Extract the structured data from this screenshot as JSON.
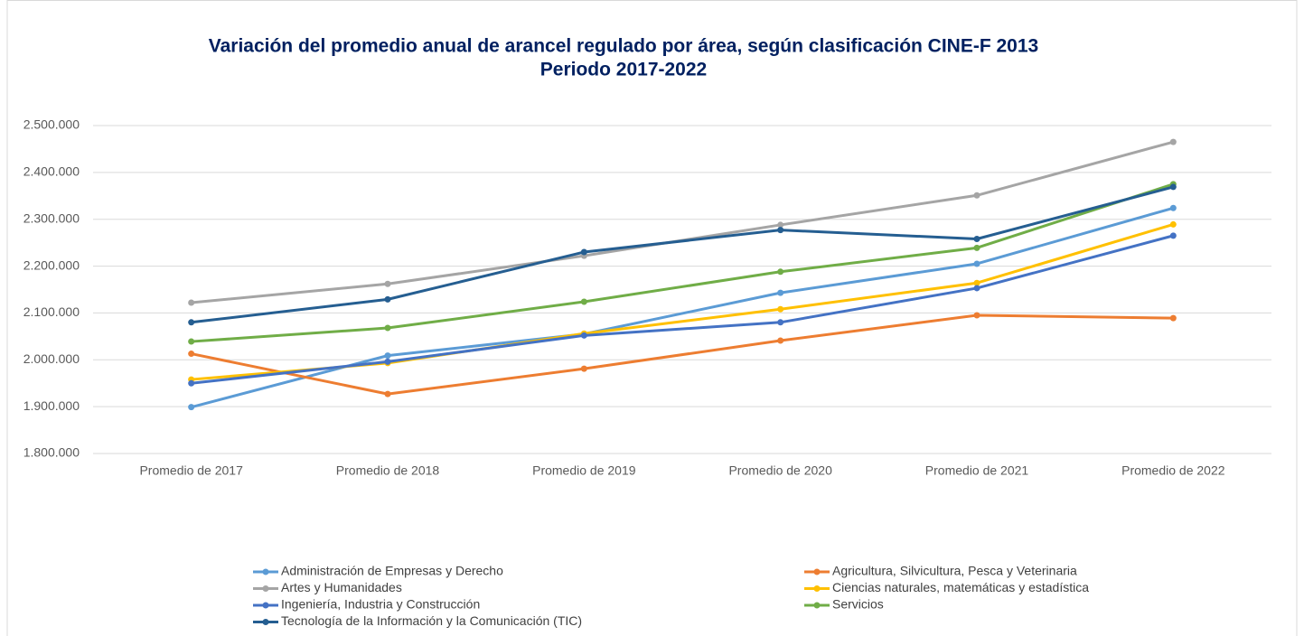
{
  "chart_data": {
    "type": "line",
    "title": "Variación del promedio anual de arancel regulado por área, según clasificación CINE-F 2013",
    "subtitle": "Periodo 2017-2022",
    "categories": [
      "Promedio de 2017",
      "Promedio de 2018",
      "Promedio de 2019",
      "Promedio de 2020",
      "Promedio de 2021",
      "Promedio de 2022"
    ],
    "ylim": [
      1800000,
      2500000
    ],
    "yticks": [
      {
        "value": 1800000,
        "label": "1.800.000"
      },
      {
        "value": 1900000,
        "label": "1.900.000"
      },
      {
        "value": 2000000,
        "label": "2.000.000"
      },
      {
        "value": 2100000,
        "label": "2.100.000"
      },
      {
        "value": 2200000,
        "label": "2.200.000"
      },
      {
        "value": 2300000,
        "label": "2.300.000"
      },
      {
        "value": 2400000,
        "label": "2.400.000"
      },
      {
        "value": 2500000,
        "label": "2.500.000"
      }
    ],
    "grid": true,
    "legend": "bottom",
    "series": [
      {
        "name": "Administración de Empresas y Derecho",
        "color": "#5b9bd5",
        "values": [
          1899000,
          2009000,
          2055000,
          2143000,
          2205000,
          2324000
        ]
      },
      {
        "name": "Agricultura, Silvicultura, Pesca y Veterinaria",
        "color": "#ed7d31",
        "values": [
          2013000,
          1927000,
          1981000,
          2041000,
          2095000,
          2089000
        ]
      },
      {
        "name": "Artes y Humanidades",
        "color": "#a5a5a5",
        "values": [
          2122000,
          2162000,
          2222000,
          2288000,
          2351000,
          2465000
        ]
      },
      {
        "name": "Ciencias naturales, matemáticas y estadística",
        "color": "#ffc000",
        "values": [
          1958000,
          1993000,
          2056000,
          2108000,
          2164000,
          2289000
        ]
      },
      {
        "name": "Ingeniería, Industria y Construcción",
        "color": "#4472c4",
        "values": [
          1950000,
          1996000,
          2052000,
          2080000,
          2153000,
          2265000
        ]
      },
      {
        "name": "Servicios",
        "color": "#70ad47",
        "values": [
          2039000,
          2068000,
          2124000,
          2188000,
          2239000,
          2375000
        ]
      },
      {
        "name": "Tecnología de la Información y la Comunicación (TIC)",
        "color": "#255e91",
        "values": [
          2080000,
          2129000,
          2230000,
          2277000,
          2258000,
          2369000
        ]
      }
    ]
  }
}
